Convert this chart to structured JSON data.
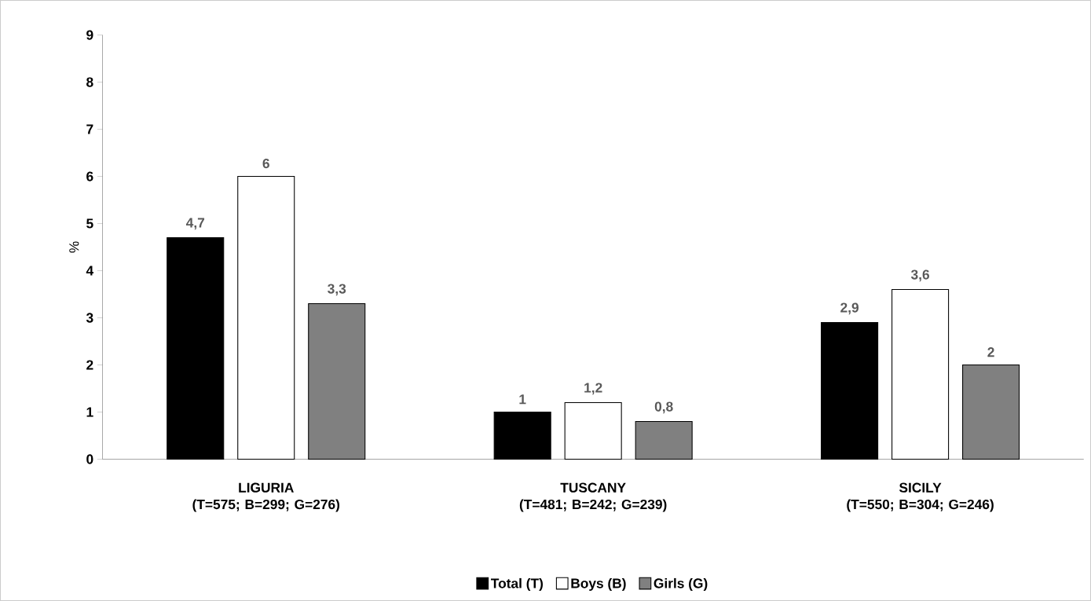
{
  "chart_data": {
    "type": "bar",
    "ylabel": "%",
    "categories": [
      "LIGURIA\n(T=575; B=299; G=276)",
      "TUSCANY\n(T=481; B=242; G=239)",
      "SICILY\n(T=550; B=304; G=246)"
    ],
    "series": [
      {
        "name": "Total (T)",
        "color": "#000000",
        "values": [
          4.7,
          1,
          2.9
        ],
        "value_labels": [
          "4,7",
          "1",
          "2,9"
        ]
      },
      {
        "name": "Boys (B)",
        "color": "#ffffff",
        "values": [
          6,
          1.2,
          3.6
        ],
        "value_labels": [
          "6",
          "1,2",
          "3,6"
        ]
      },
      {
        "name": "Girls (G)",
        "color": "#808080",
        "values": [
          3.3,
          0.8,
          2
        ],
        "value_labels": [
          "3,3",
          "0,8",
          "2"
        ]
      }
    ],
    "ylim": [
      0,
      9
    ],
    "yticks": [
      0,
      1,
      2,
      3,
      4,
      5,
      6,
      7,
      8,
      9
    ],
    "grid": false,
    "legend": "bottom"
  }
}
